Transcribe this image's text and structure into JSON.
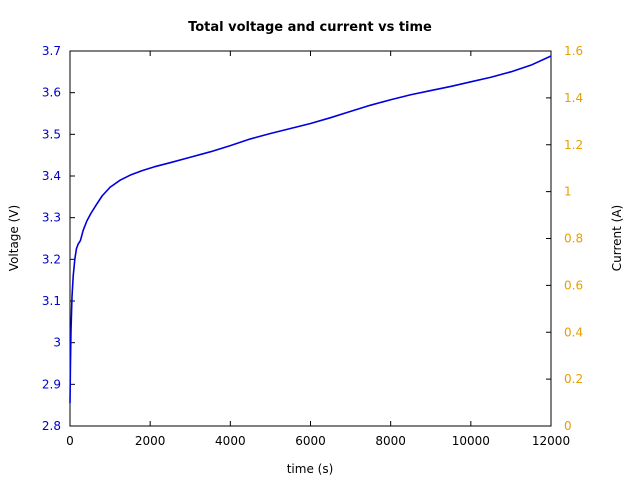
{
  "chart_data": {
    "type": "line",
    "title": "Total voltage and current vs time",
    "xlabel": "time (s)",
    "ylabel_left": "Voltage (V)",
    "ylabel_right": "Current (A)",
    "xlim": [
      0,
      12000
    ],
    "ylim_left": [
      2.8,
      3.7
    ],
    "ylim_right": [
      0,
      1.6
    ],
    "x_ticks": [
      "0",
      "2000",
      "4000",
      "6000",
      "8000",
      "10000",
      "12000"
    ],
    "y_left_ticks": [
      "2.8",
      "2.9",
      "3",
      "3.1",
      "3.2",
      "3.3",
      "3.4",
      "3.5",
      "3.6",
      "3.7"
    ],
    "y_right_ticks": [
      "0",
      "0.2",
      "0.4",
      "0.6",
      "0.8",
      "1",
      "1.2",
      "1.4",
      "1.6"
    ],
    "grid": false,
    "colors": {
      "left_axis": "#0000cc",
      "right_axis": "#e69f00",
      "series": "#0000dd"
    },
    "series": [
      {
        "axis": "left",
        "x": [
          0,
          10,
          25,
          50,
          80,
          120,
          160,
          200,
          260,
          330,
          420,
          520,
          650,
          800,
          1000,
          1250,
          1500,
          1800,
          2100,
          2500,
          3000,
          3500,
          4000,
          4500,
          5000,
          5500,
          6000,
          6500,
          7000,
          7500,
          8000,
          8500,
          9000,
          9500,
          10000,
          10500,
          11000,
          11500,
          12000
        ],
        "y": [
          2.855,
          2.94,
          3.03,
          3.11,
          3.16,
          3.2,
          3.225,
          3.236,
          3.245,
          3.27,
          3.292,
          3.31,
          3.33,
          3.352,
          3.373,
          3.39,
          3.402,
          3.413,
          3.422,
          3.432,
          3.445,
          3.458,
          3.473,
          3.489,
          3.502,
          3.514,
          3.526,
          3.54,
          3.555,
          3.57,
          3.583,
          3.595,
          3.605,
          3.615,
          3.626,
          3.637,
          3.65,
          3.666,
          3.688
        ]
      }
    ]
  }
}
